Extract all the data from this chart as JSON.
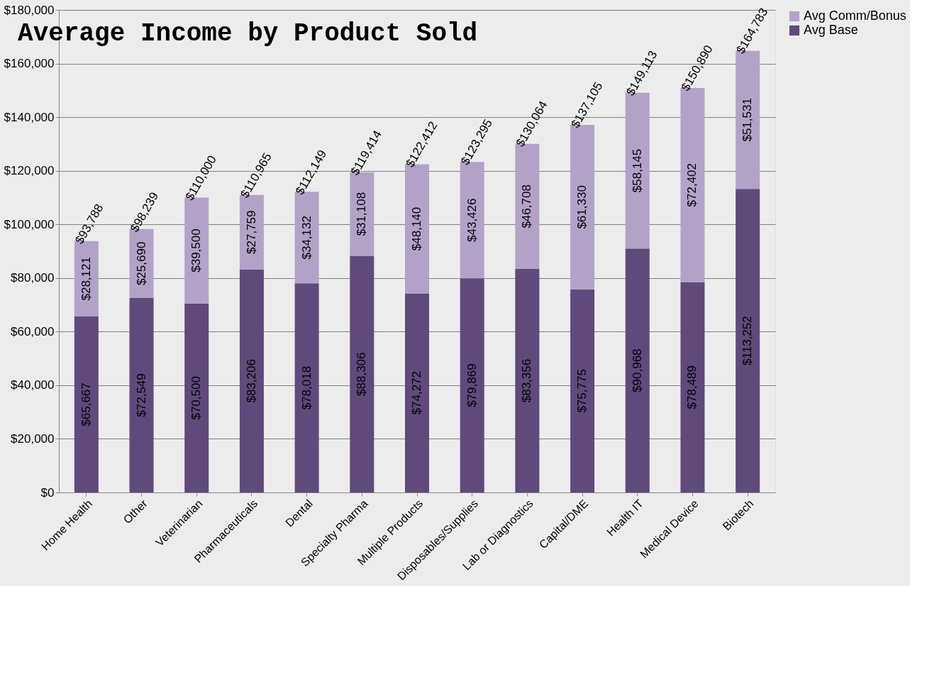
{
  "chart_data": {
    "type": "bar",
    "title": "Average Income by Product Sold",
    "stacked": true,
    "categories": [
      "Home Health",
      "Other",
      "Veterinarian",
      "Pharmaceuticals",
      "Dental",
      "Specialty Pharma",
      "Multiple Products",
      "Disposables/Supplies",
      "Lab or Diagnostics",
      "Capital/DME",
      "Health IT",
      "Medical Device",
      "Biotech"
    ],
    "series": [
      {
        "name": "Avg Base",
        "color": "#5f4a7b",
        "values": [
          65667,
          72549,
          70500,
          83206,
          78018,
          88306,
          74272,
          79869,
          83356,
          75775,
          90968,
          78489,
          113252
        ],
        "value_labels": [
          "$65,667",
          "$72,549",
          "$70,500",
          "$83,206",
          "$78,018",
          "$88,306",
          "$74,272",
          "$79,869",
          "$83,356",
          "$75,775",
          "$90,968",
          "$78,489",
          "$113,252"
        ]
      },
      {
        "name": "Avg Comm/Bonus",
        "color": "#b3a2c8",
        "values": [
          28121,
          25690,
          39500,
          27759,
          34132,
          31108,
          48140,
          43426,
          46708,
          61330,
          58145,
          72402,
          51531
        ],
        "value_labels": [
          "$28,121",
          "$25,690",
          "$39,500",
          "$27,759",
          "$34,132",
          "$31,108",
          "$48,140",
          "$43,426",
          "$46,708",
          "$61,330",
          "$58,145",
          "$72,402",
          "$51,531"
        ]
      }
    ],
    "totals": [
      "$93,788",
      "$98,239",
      "$110,000",
      "$110,965",
      "$112,149",
      "$119,414",
      "$122,412",
      "$123,295",
      "$130,064",
      "$137,105",
      "$149,113",
      "$150,890",
      "$164,783"
    ],
    "ylim": [
      0,
      180000
    ],
    "yticks": [
      {
        "value": 0,
        "label": "$0"
      },
      {
        "value": 20000,
        "label": "$20,000"
      },
      {
        "value": 40000,
        "label": "$40,000"
      },
      {
        "value": 60000,
        "label": "$60,000"
      },
      {
        "value": 80000,
        "label": "$80,000"
      },
      {
        "value": 100000,
        "label": "$100,000"
      },
      {
        "value": 120000,
        "label": "$120,000"
      },
      {
        "value": 140000,
        "label": "$140,000"
      },
      {
        "value": 160000,
        "label": "$160,000"
      },
      {
        "value": 180000,
        "label": "$180,000"
      }
    ],
    "grid": "y",
    "legend": "right"
  }
}
